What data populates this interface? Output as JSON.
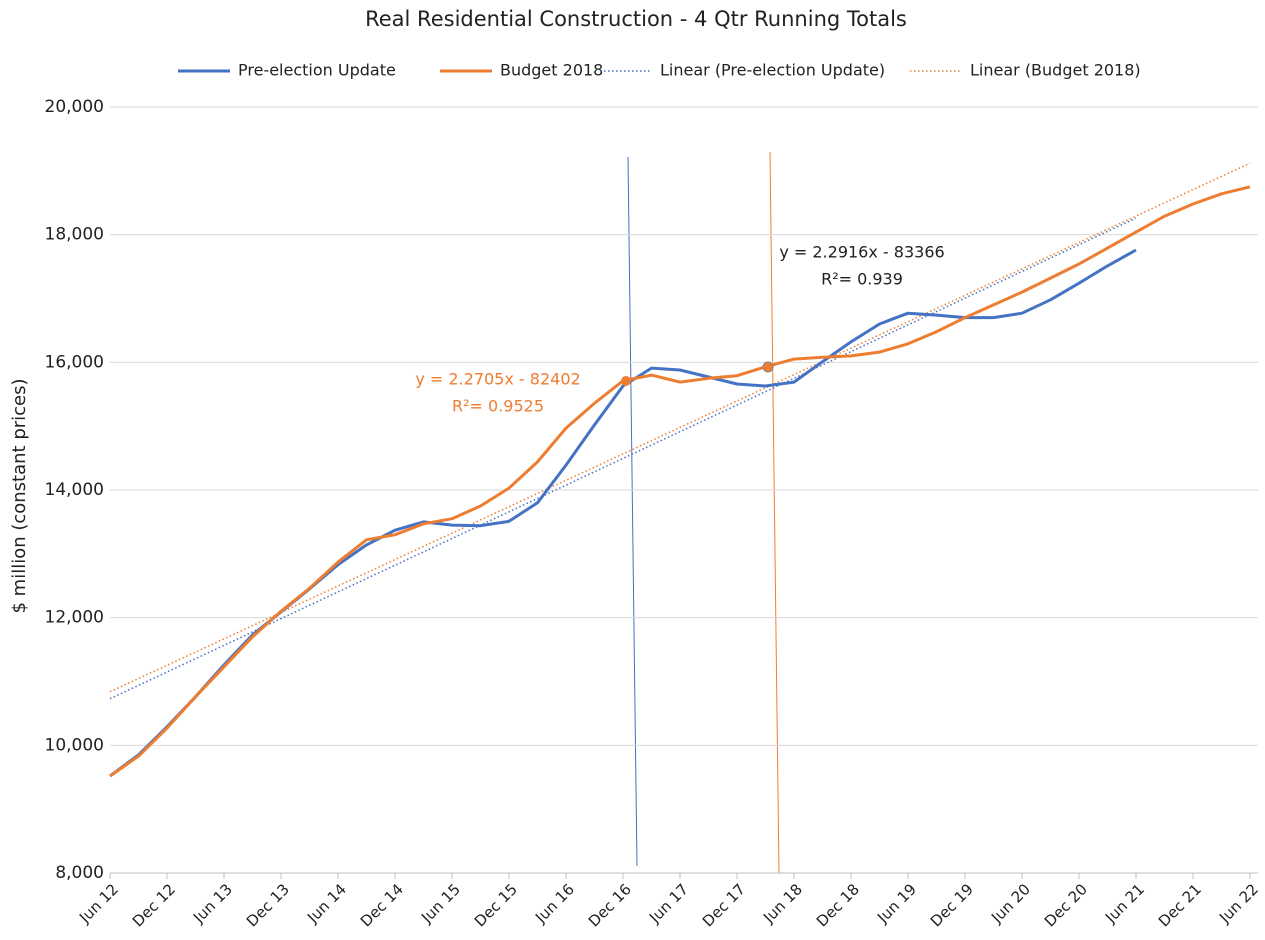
{
  "chart_data": {
    "type": "line",
    "title": "Real Residential Construction - 4 Qtr Running Totals",
    "y_label": "$ million (constant prices)",
    "categories": [
      "Jun 12",
      null,
      "Dec 12",
      null,
      "Jun 13",
      null,
      "Dec 13",
      null,
      "Jun 14",
      null,
      "Dec 14",
      null,
      "Jun 15",
      null,
      "Dec 15",
      null,
      "Jun 16",
      null,
      "Dec 16",
      null,
      "Jun 17",
      null,
      "Dec 17",
      null,
      "Jun 18",
      null,
      "Dec 18",
      null,
      "Jun 19",
      null,
      "Dec 19",
      null,
      "Jun 20",
      null,
      "Dec 20",
      null,
      "Jun 21",
      null,
      "Dec 21",
      null,
      "Jun 22"
    ],
    "series": [
      {
        "name": "Pre-election Update",
        "color": "#4472c4",
        "values": [
          9520,
          9850,
          10290,
          10760,
          11260,
          11730,
          12090,
          12450,
          12830,
          13140,
          13370,
          13500,
          13450,
          13440,
          13510,
          13800,
          14390,
          15020,
          15630,
          15910,
          15880,
          15770,
          15660,
          15630,
          15690,
          16010,
          16320,
          16600,
          16770,
          16740,
          16700,
          16700,
          16770,
          16980,
          17240,
          17510,
          17760,
          null,
          null,
          null,
          null
        ]
      },
      {
        "name": "Budget 2018",
        "color": "#ed7d31",
        "values": [
          9520,
          9830,
          10270,
          10760,
          11230,
          11700,
          12100,
          12460,
          12870,
          13220,
          13300,
          13470,
          13550,
          13750,
          14030,
          14440,
          14970,
          15360,
          15710,
          15800,
          15690,
          15750,
          15790,
          15930,
          16050,
          16080,
          16100,
          16160,
          16290,
          16480,
          16700,
          16900,
          17100,
          17320,
          17540,
          17790,
          18040,
          18290,
          18480,
          18640,
          18750
        ]
      }
    ],
    "trendlines": [
      {
        "name": "Linear (Pre-election Update)",
        "color": "#4472c4",
        "x": [
          "Jun 12",
          "Jun 21"
        ],
        "values": [
          10730,
          18260
        ]
      },
      {
        "name": "Linear (Budget 2018)",
        "color": "#ed7d31",
        "x": [
          "Jun 12",
          "Jun 22"
        ],
        "values": [
          10840,
          19120
        ]
      }
    ],
    "annotations": [
      {
        "equation": "y = 2.2705x - 82402",
        "r2": "R²= 0.9525",
        "color": "#ed7d31"
      },
      {
        "equation": "y = 2.2916x - 83366",
        "r2": "R²= 0.939",
        "color": "#222222"
      }
    ],
    "ylim": [
      8000,
      20000
    ],
    "yticks": [
      {
        "value": 8000,
        "label": "8,000"
      },
      {
        "value": 10000,
        "label": "10,000"
      },
      {
        "value": 12000,
        "label": "12,000"
      },
      {
        "value": 14000,
        "label": "14,000"
      },
      {
        "value": 16000,
        "label": "16,000"
      },
      {
        "value": 18000,
        "label": "18,000"
      },
      {
        "value": 20000,
        "label": "20,000"
      }
    ],
    "grid": true
  }
}
